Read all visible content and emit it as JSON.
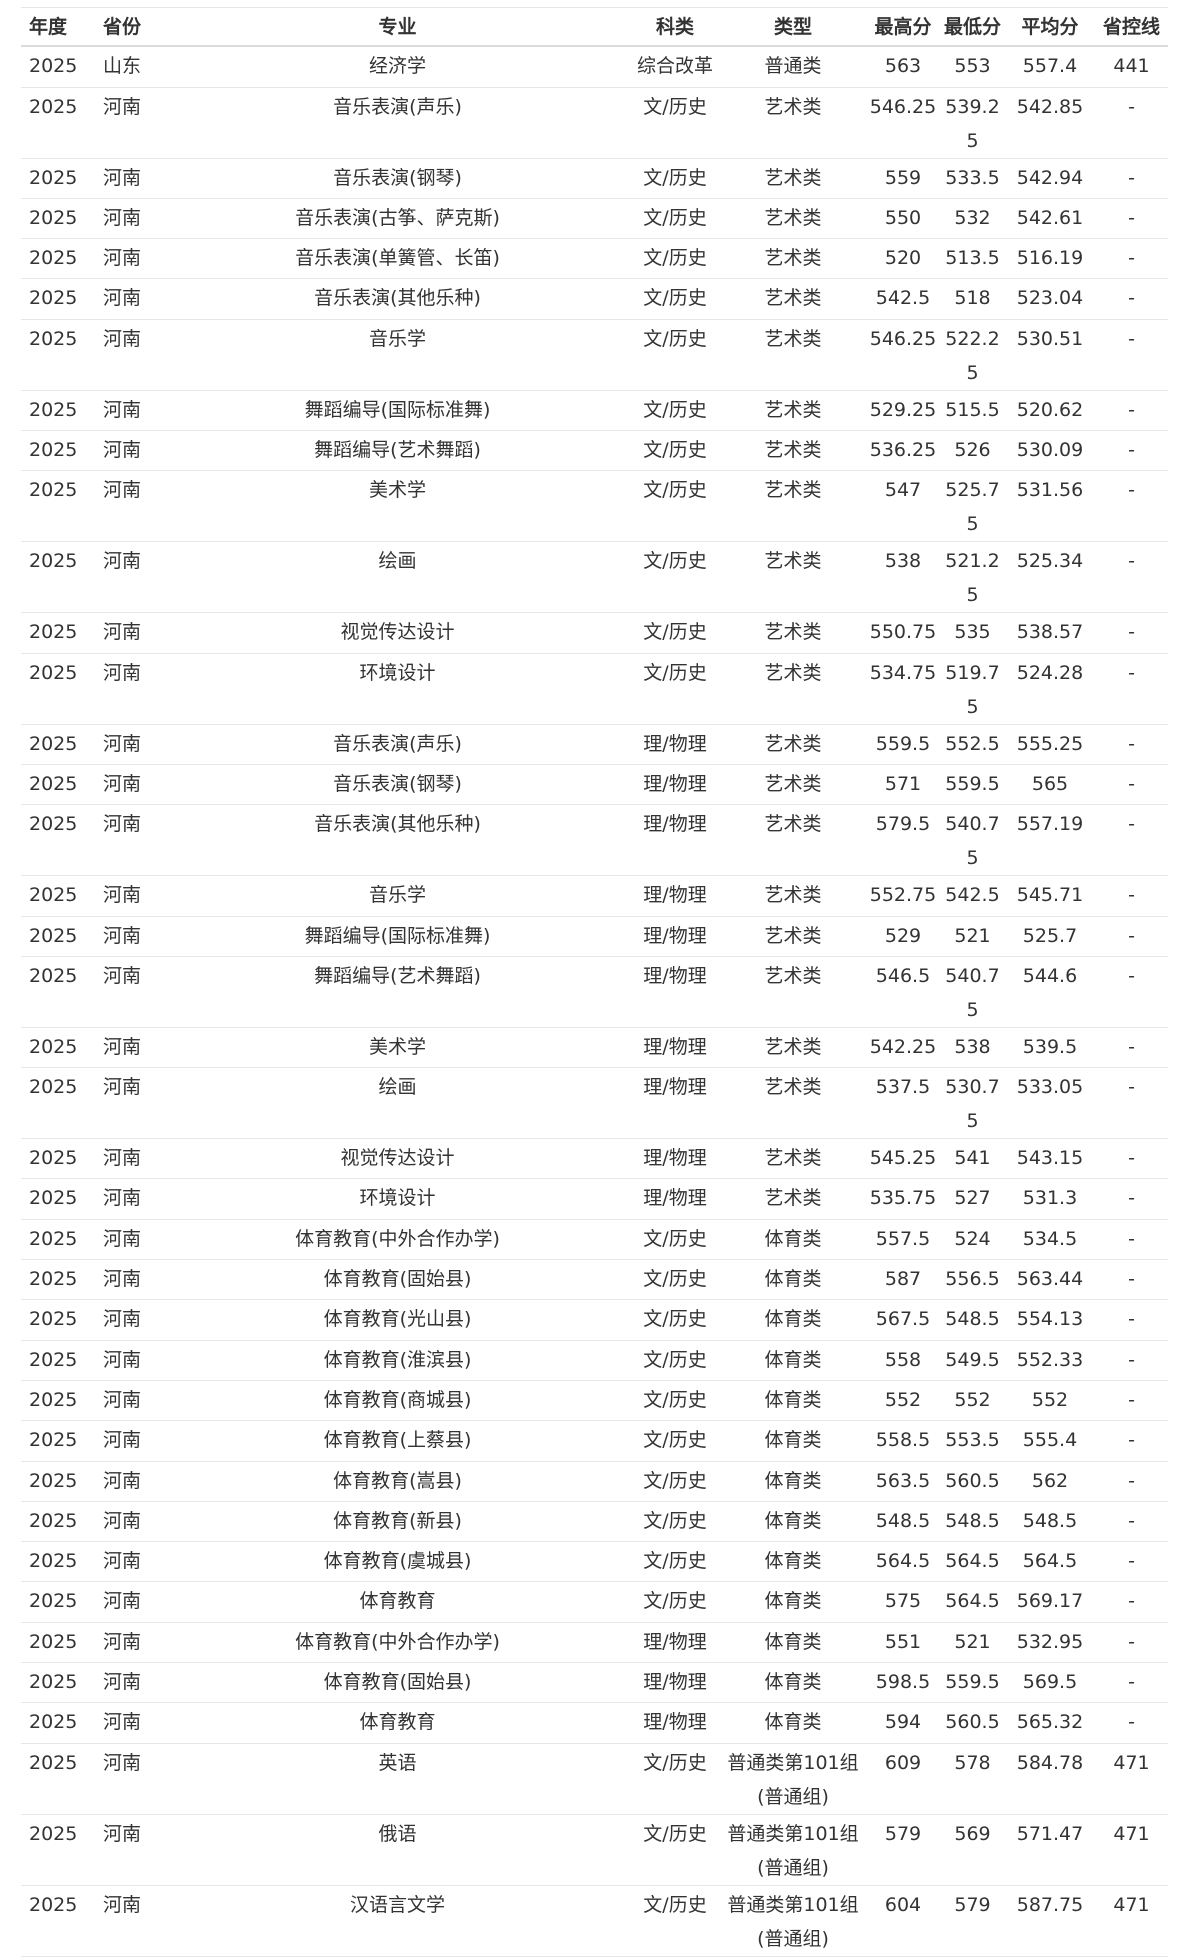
{
  "headers": [
    "年度",
    "省份",
    "专业",
    "科类",
    "类型",
    "最高分",
    "最低分",
    "平均分",
    "省控线"
  ],
  "rows": [
    [
      "2025",
      "山东",
      "经济学",
      "综合改革",
      "普通类",
      "563",
      "553",
      "557.4",
      "441"
    ],
    [
      "2025",
      "河南",
      "音乐表演(声乐)",
      "文/历史",
      "艺术类",
      "546.25",
      "539.25",
      "542.85",
      "-"
    ],
    [
      "2025",
      "河南",
      "音乐表演(钢琴)",
      "文/历史",
      "艺术类",
      "559",
      "533.5",
      "542.94",
      "-"
    ],
    [
      "2025",
      "河南",
      "音乐表演(古筝、萨克斯)",
      "文/历史",
      "艺术类",
      "550",
      "532",
      "542.61",
      "-"
    ],
    [
      "2025",
      "河南",
      "音乐表演(单簧管、长笛)",
      "文/历史",
      "艺术类",
      "520",
      "513.5",
      "516.19",
      "-"
    ],
    [
      "2025",
      "河南",
      "音乐表演(其他乐种)",
      "文/历史",
      "艺术类",
      "542.5",
      "518",
      "523.04",
      "-"
    ],
    [
      "2025",
      "河南",
      "音乐学",
      "文/历史",
      "艺术类",
      "546.25",
      "522.25",
      "530.51",
      "-"
    ],
    [
      "2025",
      "河南",
      "舞蹈编导(国际标准舞)",
      "文/历史",
      "艺术类",
      "529.25",
      "515.5",
      "520.62",
      "-"
    ],
    [
      "2025",
      "河南",
      "舞蹈编导(艺术舞蹈)",
      "文/历史",
      "艺术类",
      "536.25",
      "526",
      "530.09",
      "-"
    ],
    [
      "2025",
      "河南",
      "美术学",
      "文/历史",
      "艺术类",
      "547",
      "525.75",
      "531.56",
      "-"
    ],
    [
      "2025",
      "河南",
      "绘画",
      "文/历史",
      "艺术类",
      "538",
      "521.25",
      "525.34",
      "-"
    ],
    [
      "2025",
      "河南",
      "视觉传达设计",
      "文/历史",
      "艺术类",
      "550.75",
      "535",
      "538.57",
      "-"
    ],
    [
      "2025",
      "河南",
      "环境设计",
      "文/历史",
      "艺术类",
      "534.75",
      "519.75",
      "524.28",
      "-"
    ],
    [
      "2025",
      "河南",
      "音乐表演(声乐)",
      "理/物理",
      "艺术类",
      "559.5",
      "552.5",
      "555.25",
      "-"
    ],
    [
      "2025",
      "河南",
      "音乐表演(钢琴)",
      "理/物理",
      "艺术类",
      "571",
      "559.5",
      "565",
      "-"
    ],
    [
      "2025",
      "河南",
      "音乐表演(其他乐种)",
      "理/物理",
      "艺术类",
      "579.5",
      "540.75",
      "557.19",
      "-"
    ],
    [
      "2025",
      "河南",
      "音乐学",
      "理/物理",
      "艺术类",
      "552.75",
      "542.5",
      "545.71",
      "-"
    ],
    [
      "2025",
      "河南",
      "舞蹈编导(国际标准舞)",
      "理/物理",
      "艺术类",
      "529",
      "521",
      "525.7",
      "-"
    ],
    [
      "2025",
      "河南",
      "舞蹈编导(艺术舞蹈)",
      "理/物理",
      "艺术类",
      "546.5",
      "540.75",
      "544.6",
      "-"
    ],
    [
      "2025",
      "河南",
      "美术学",
      "理/物理",
      "艺术类",
      "542.25",
      "538",
      "539.5",
      "-"
    ],
    [
      "2025",
      "河南",
      "绘画",
      "理/物理",
      "艺术类",
      "537.5",
      "530.75",
      "533.05",
      "-"
    ],
    [
      "2025",
      "河南",
      "视觉传达设计",
      "理/物理",
      "艺术类",
      "545.25",
      "541",
      "543.15",
      "-"
    ],
    [
      "2025",
      "河南",
      "环境设计",
      "理/物理",
      "艺术类",
      "535.75",
      "527",
      "531.3",
      "-"
    ],
    [
      "2025",
      "河南",
      "体育教育(中外合作办学)",
      "文/历史",
      "体育类",
      "557.5",
      "524",
      "534.5",
      "-"
    ],
    [
      "2025",
      "河南",
      "体育教育(固始县)",
      "文/历史",
      "体育类",
      "587",
      "556.5",
      "563.44",
      "-"
    ],
    [
      "2025",
      "河南",
      "体育教育(光山县)",
      "文/历史",
      "体育类",
      "567.5",
      "548.5",
      "554.13",
      "-"
    ],
    [
      "2025",
      "河南",
      "体育教育(淮滨县)",
      "文/历史",
      "体育类",
      "558",
      "549.5",
      "552.33",
      "-"
    ],
    [
      "2025",
      "河南",
      "体育教育(商城县)",
      "文/历史",
      "体育类",
      "552",
      "552",
      "552",
      "-"
    ],
    [
      "2025",
      "河南",
      "体育教育(上蔡县)",
      "文/历史",
      "体育类",
      "558.5",
      "553.5",
      "555.4",
      "-"
    ],
    [
      "2025",
      "河南",
      "体育教育(嵩县)",
      "文/历史",
      "体育类",
      "563.5",
      "560.5",
      "562",
      "-"
    ],
    [
      "2025",
      "河南",
      "体育教育(新县)",
      "文/历史",
      "体育类",
      "548.5",
      "548.5",
      "548.5",
      "-"
    ],
    [
      "2025",
      "河南",
      "体育教育(虞城县)",
      "文/历史",
      "体育类",
      "564.5",
      "564.5",
      "564.5",
      "-"
    ],
    [
      "2025",
      "河南",
      "体育教育",
      "文/历史",
      "体育类",
      "575",
      "564.5",
      "569.17",
      "-"
    ],
    [
      "2025",
      "河南",
      "体育教育(中外合作办学)",
      "理/物理",
      "体育类",
      "551",
      "521",
      "532.95",
      "-"
    ],
    [
      "2025",
      "河南",
      "体育教育(固始县)",
      "理/物理",
      "体育类",
      "598.5",
      "559.5",
      "569.5",
      "-"
    ],
    [
      "2025",
      "河南",
      "体育教育",
      "理/物理",
      "体育类",
      "594",
      "560.5",
      "565.32",
      "-"
    ],
    [
      "2025",
      "河南",
      "英语",
      "文/历史",
      "普通类第101组(普通组)",
      "609",
      "578",
      "584.78",
      "471"
    ],
    [
      "2025",
      "河南",
      "俄语",
      "文/历史",
      "普通类第101组(普通组)",
      "579",
      "569",
      "571.47",
      "471"
    ],
    [
      "2025",
      "河南",
      "汉语言文学",
      "文/历史",
      "普通类第101组(普通组)",
      "604",
      "579",
      "587.75",
      "471"
    ]
  ]
}
